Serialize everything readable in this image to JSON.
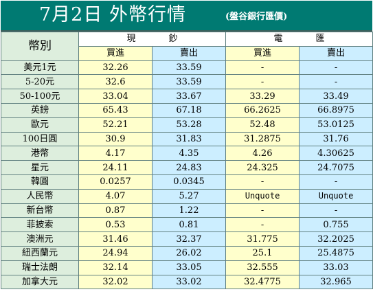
{
  "header": {
    "title": "7月2日 外幣行情",
    "subtitle": "(盤谷銀行匯價)"
  },
  "table": {
    "currency_header": "幣別",
    "groups": [
      "現鈔",
      "電匯"
    ],
    "subheaders": [
      "買進",
      "賣出",
      "買進",
      "賣出"
    ],
    "rows": [
      {
        "currency": "美元1元",
        "cash_buy": "32.26",
        "cash_sell": "33.59",
        "wire_buy": "-",
        "wire_sell": "-"
      },
      {
        "currency": "5-20元",
        "cash_buy": "32.6",
        "cash_sell": "33.59",
        "wire_buy": "-",
        "wire_sell": "-"
      },
      {
        "currency": "50-100元",
        "cash_buy": "33.04",
        "cash_sell": "33.67",
        "wire_buy": "33.29",
        "wire_sell": "33.49"
      },
      {
        "currency": "英鎊",
        "cash_buy": "65.43",
        "cash_sell": "67.18",
        "wire_buy": "66.2625",
        "wire_sell": "66.8975"
      },
      {
        "currency": "歐元",
        "cash_buy": "52.21",
        "cash_sell": "53.28",
        "wire_buy": "52.48",
        "wire_sell": "53.0125"
      },
      {
        "currency": "100日圓",
        "cash_buy": "30.9",
        "cash_sell": "31.83",
        "wire_buy": "31.2875",
        "wire_sell": "31.76"
      },
      {
        "currency": "港幣",
        "cash_buy": "4.17",
        "cash_sell": "4.35",
        "wire_buy": "4.26",
        "wire_sell": "4.30625"
      },
      {
        "currency": "星元",
        "cash_buy": "24.11",
        "cash_sell": "24.83",
        "wire_buy": "24.325",
        "wire_sell": "24.7075"
      },
      {
        "currency": "韓圓",
        "cash_buy": "0.0257",
        "cash_sell": "0.0345",
        "wire_buy": "-",
        "wire_sell": "-"
      },
      {
        "currency": "人民幣",
        "cash_buy": "4.07",
        "cash_sell": "5.27",
        "wire_buy": "Unquote",
        "wire_sell": "Unquote"
      },
      {
        "currency": "新台幣",
        "cash_buy": "0.87",
        "cash_sell": "1.22",
        "wire_buy": "-",
        "wire_sell": "-"
      },
      {
        "currency": "菲披索",
        "cash_buy": "0.53",
        "cash_sell": "0.81",
        "wire_buy": "-",
        "wire_sell": "0.755"
      },
      {
        "currency": "澳洲元",
        "cash_buy": "31.46",
        "cash_sell": "32.37",
        "wire_buy": "31.775",
        "wire_sell": "32.2025"
      },
      {
        "currency": "紐西蘭元",
        "cash_buy": "24.94",
        "cash_sell": "26.02",
        "wire_buy": "25.1",
        "wire_sell": "25.4875"
      },
      {
        "currency": "瑞士法朗",
        "cash_buy": "32.14",
        "cash_sell": "33.05",
        "wire_buy": "32.555",
        "wire_sell": "33.03"
      },
      {
        "currency": "加拿大元",
        "cash_buy": "32.02",
        "cash_sell": "33.02",
        "wire_buy": "32.4775",
        "wire_sell": "32.965"
      }
    ]
  },
  "colors": {
    "title_bg": "#007a72",
    "label_bg": "#ddeedd",
    "buy_bg": "#ffffcc",
    "sell_bg": "#cceeff"
  }
}
